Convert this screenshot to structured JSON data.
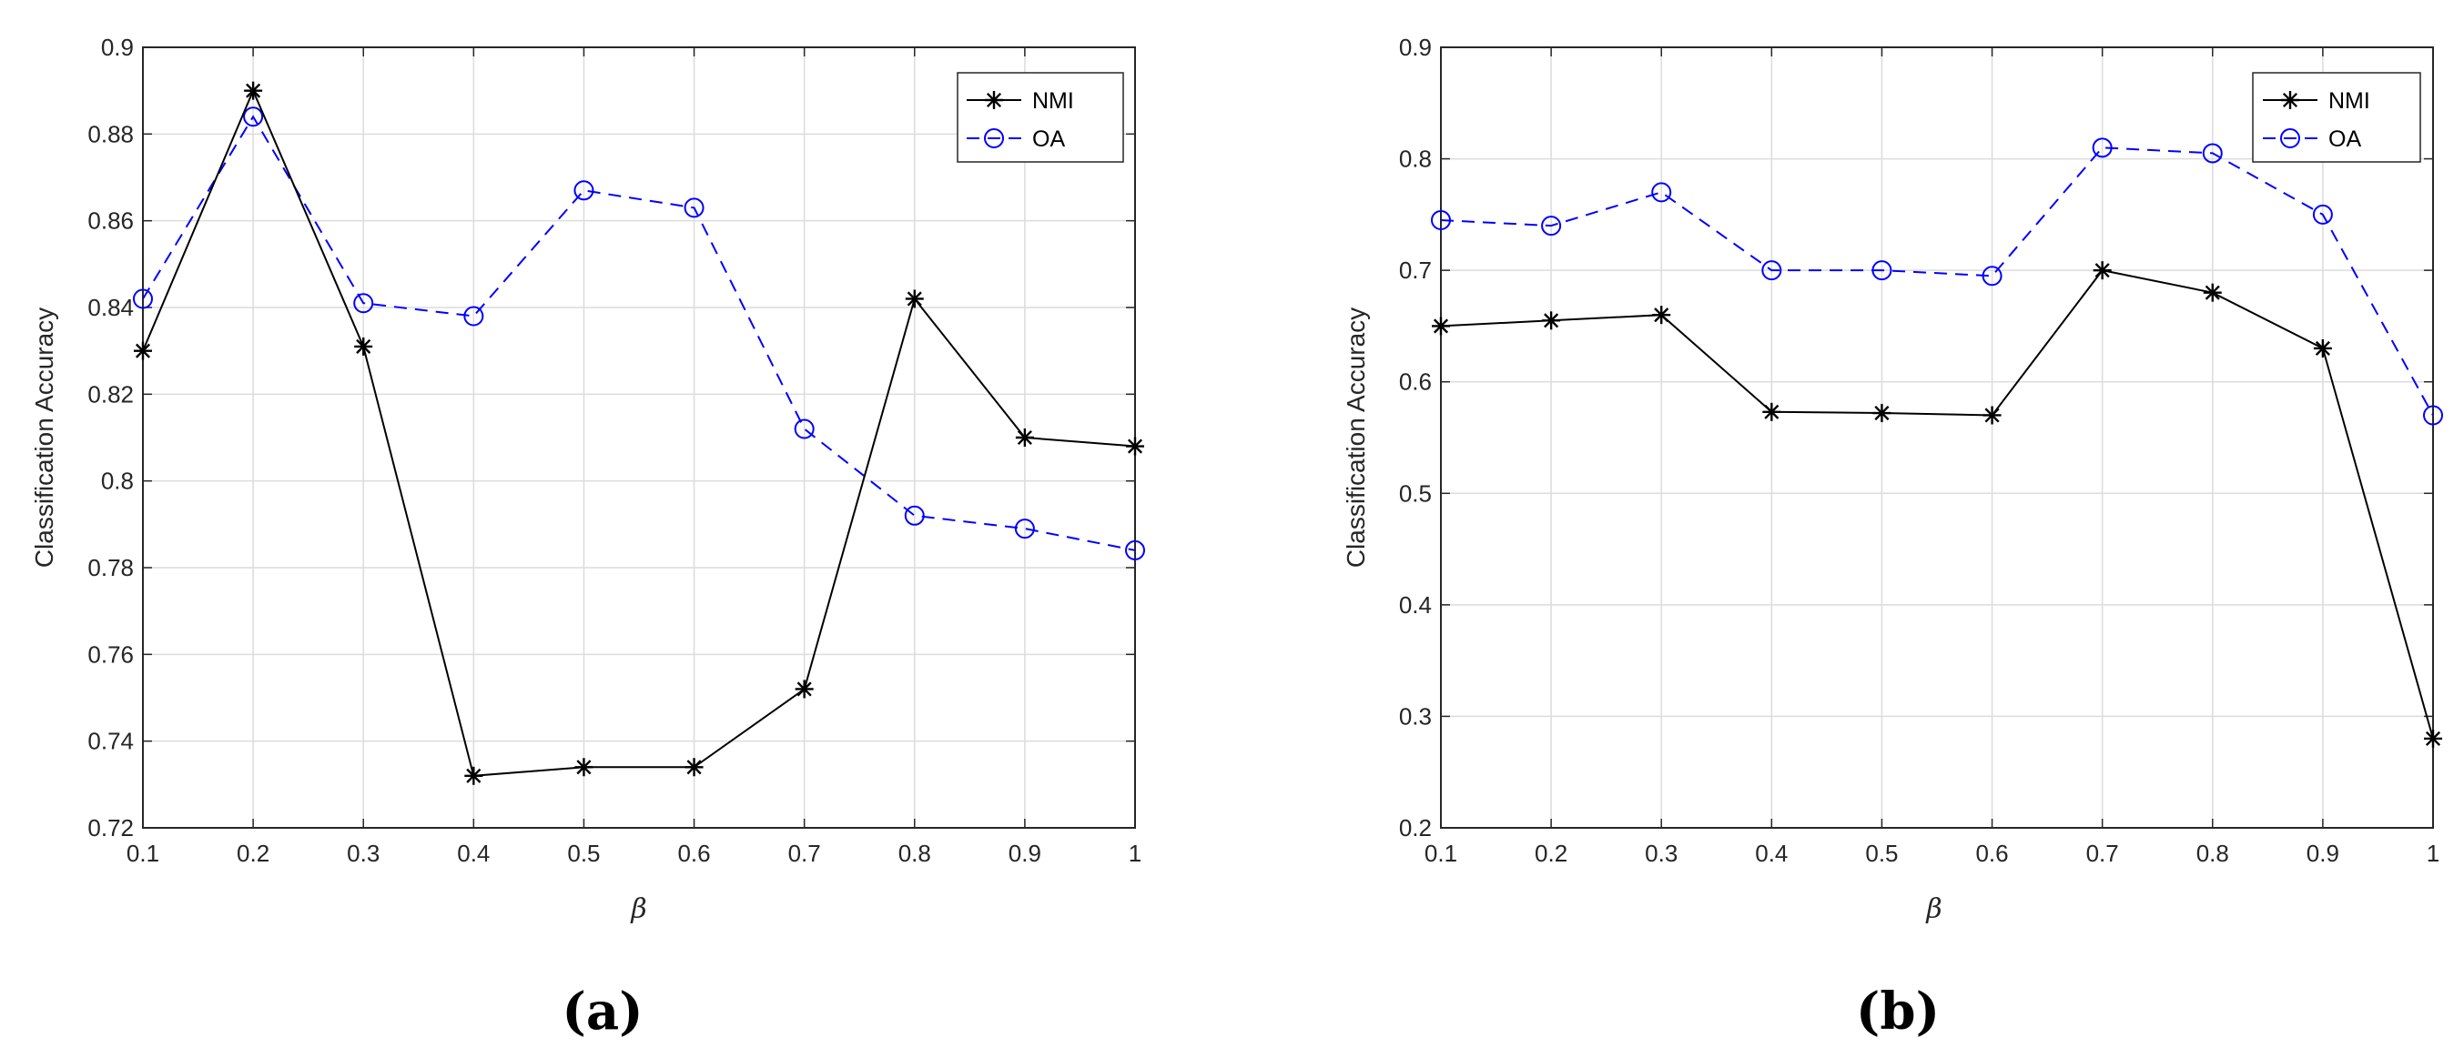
{
  "colors": {
    "nmi": "#000000",
    "oa": "#0000ff",
    "grid": "#dcdcdc",
    "axis": "#262626"
  },
  "chart_data": [
    {
      "type": "line",
      "caption": "(a)",
      "xlabel": "β",
      "ylabel": "Classification Accuracy",
      "x": [
        0.1,
        0.2,
        0.3,
        0.4,
        0.5,
        0.6,
        0.7,
        0.8,
        0.9,
        1
      ],
      "xlim": [
        0.1,
        1
      ],
      "ylim": [
        0.72,
        0.9
      ],
      "xticks": [
        "0.1",
        "0.2",
        "0.3",
        "0.4",
        "0.5",
        "0.6",
        "0.7",
        "0.8",
        "0.9",
        "1"
      ],
      "yticks": [
        "0.72",
        "0.74",
        "0.76",
        "0.78",
        "0.8",
        "0.82",
        "0.84",
        "0.86",
        "0.88",
        "0.9"
      ],
      "grid": true,
      "legend_position": "top-right",
      "series": [
        {
          "name": "NMI",
          "marker": "asterisk",
          "line": "solid",
          "values": [
            0.83,
            0.89,
            0.831,
            0.732,
            0.734,
            0.734,
            0.752,
            0.842,
            0.81,
            0.808
          ]
        },
        {
          "name": "OA",
          "marker": "circle",
          "line": "dashed",
          "values": [
            0.842,
            0.884,
            0.841,
            0.838,
            0.867,
            0.863,
            0.812,
            0.792,
            0.789,
            0.784
          ]
        }
      ]
    },
    {
      "type": "line",
      "caption": "(b)",
      "xlabel": "β",
      "ylabel": "Classification Accuracy",
      "x": [
        0.1,
        0.2,
        0.3,
        0.4,
        0.5,
        0.6,
        0.7,
        0.8,
        0.9,
        1
      ],
      "xlim": [
        0.1,
        1
      ],
      "ylim": [
        0.2,
        0.9
      ],
      "xticks": [
        "0.1",
        "0.2",
        "0.3",
        "0.4",
        "0.5",
        "0.6",
        "0.7",
        "0.8",
        "0.9",
        "1"
      ],
      "yticks": [
        "0.2",
        "0.3",
        "0.4",
        "0.5",
        "0.6",
        "0.7",
        "0.8",
        "0.9"
      ],
      "grid": true,
      "legend_position": "top-right",
      "series": [
        {
          "name": "NMI",
          "marker": "asterisk",
          "line": "solid",
          "values": [
            0.65,
            0.655,
            0.66,
            0.573,
            0.572,
            0.57,
            0.7,
            0.68,
            0.63,
            0.28
          ]
        },
        {
          "name": "OA",
          "marker": "circle",
          "line": "dashed",
          "values": [
            0.745,
            0.74,
            0.77,
            0.7,
            0.7,
            0.695,
            0.81,
            0.805,
            0.75,
            0.57
          ]
        }
      ]
    }
  ]
}
